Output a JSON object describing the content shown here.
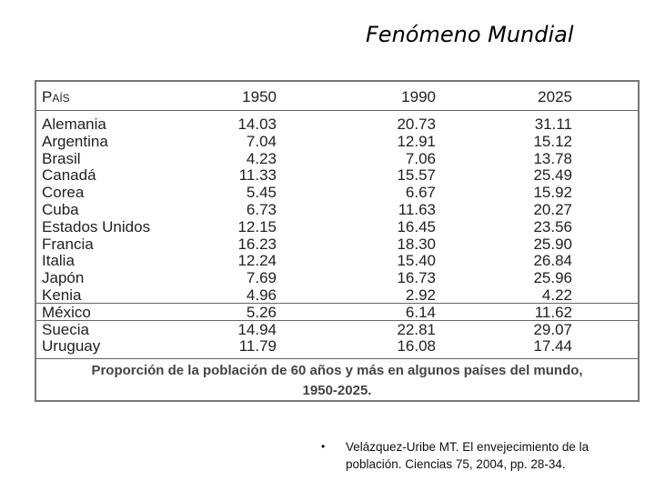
{
  "header": {
    "title": "Fenómeno Mundial"
  },
  "table": {
    "columns": [
      "País",
      "1950",
      "1990",
      "2025"
    ],
    "rows": [
      [
        "Alemania",
        "14.03",
        "20.73",
        "31.11"
      ],
      [
        "Argentina",
        "7.04",
        "12.91",
        "15.12"
      ],
      [
        "Brasil",
        "4.23",
        "7.06",
        "13.78"
      ],
      [
        "Canadá",
        "11.33",
        "15.57",
        "25.49"
      ],
      [
        "Corea",
        "5.45",
        "6.67",
        "15.92"
      ],
      [
        "Cuba",
        "6.73",
        "11.63",
        "20.27"
      ],
      [
        "Estados Unidos",
        "12.15",
        "16.45",
        "23.56"
      ],
      [
        "Francia",
        "16.23",
        "18.30",
        "25.90"
      ],
      [
        "Italia",
        "12.24",
        "15.40",
        "26.84"
      ],
      [
        "Japón",
        "7.69",
        "16.73",
        "25.96"
      ],
      [
        "Kenia",
        "4.96",
        "2.92",
        "4.22"
      ],
      [
        "México",
        "5.26",
        "6.14",
        "11.62"
      ],
      [
        "Suecia",
        "14.94",
        "22.81",
        "29.07"
      ],
      [
        "Uruguay",
        "11.79",
        "16.08",
        "17.44"
      ]
    ],
    "caption": [
      "Proporción de la población de 60 años y más en algunos países del mundo,",
      "1950-2025."
    ]
  },
  "footnote": "Velázquez-Uribe MT. El envejecimiento de la población. Ciencias 75, 2004, pp. 28-34."
}
